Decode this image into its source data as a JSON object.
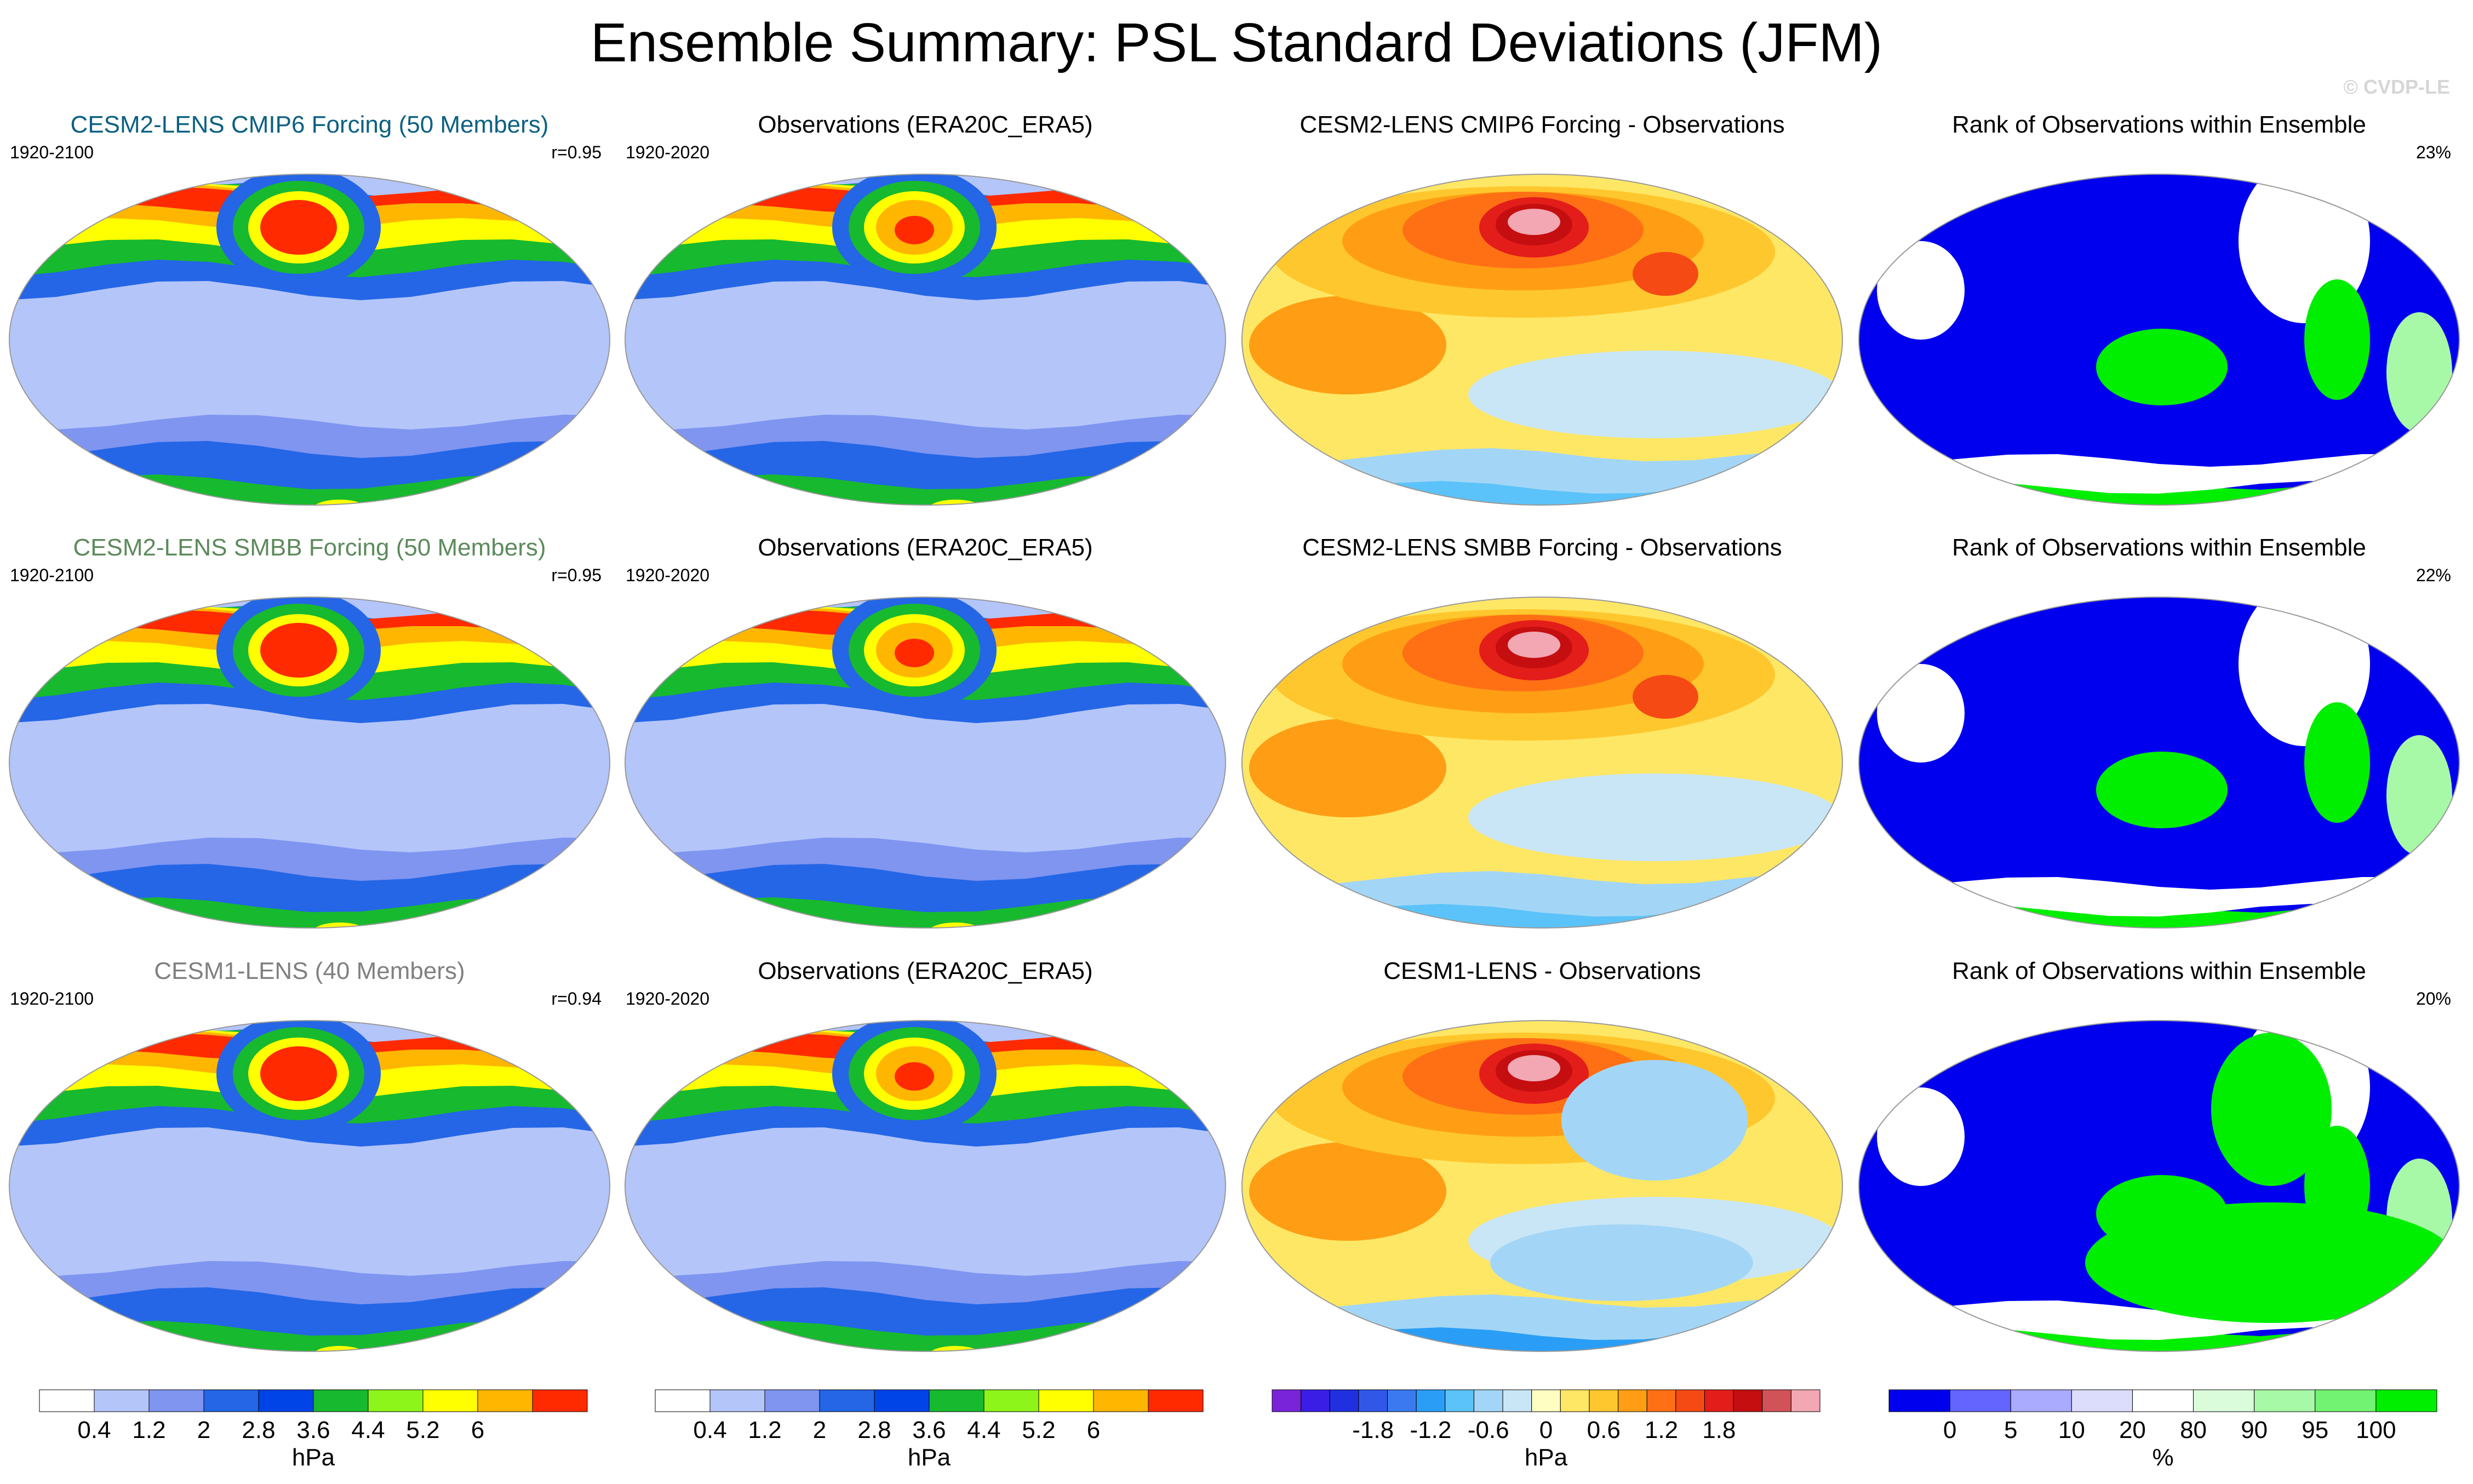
{
  "header": {
    "title": "Ensemble Summary: PSL Standard Deviations (JFM)",
    "credit": "© CVDP-LE"
  },
  "colors": {
    "seq": [
      "#ffffff",
      "#b4c5fa",
      "#7f95f0",
      "#2466e6",
      "#0044e8",
      "#17b92f",
      "#8df51a",
      "#ffff00",
      "#ffb600",
      "#ff2a00"
    ],
    "diff": [
      "#7a24d9",
      "#3a1ee6",
      "#2030e0",
      "#3157e9",
      "#3a79f0",
      "#2a9ef7",
      "#5cc3fa",
      "#a3d6f6",
      "#c9e6f7",
      "#fefec2",
      "#ffe766",
      "#ffc72e",
      "#ff9e14",
      "#ff7014",
      "#f54a14",
      "#e31d1a",
      "#c50e10",
      "#d2525a",
      "#f2a7b2"
    ],
    "rank": [
      "#0000ee",
      "#6464ff",
      "#aaaaff",
      "#dcdcfd",
      "#ffffff",
      "#dbfcdb",
      "#a7f9a7",
      "#72f372",
      "#00ee00"
    ],
    "title_blue": "#0b6083",
    "title_green": "#5c8a5c",
    "title_gray": "#808080"
  },
  "rows": [
    {
      "cols": [
        {
          "title": "CESM2-LENS CMIP6 Forcing (50 Members)",
          "left": "1920-2100",
          "right": "r=0.95",
          "kind": "seq",
          "tint": "title_blue"
        },
        {
          "title": "Observations (ERA20C_ERA5)",
          "left": "1920-2020",
          "right": "",
          "kind": "seq-obs",
          "tint": ""
        },
        {
          "title": "CESM2-LENS CMIP6 Forcing - Observations",
          "left": "",
          "right": "",
          "kind": "diff",
          "tint": ""
        },
        {
          "title": "Rank of Observations within Ensemble",
          "left": "",
          "right": "23%",
          "kind": "rank",
          "tint": ""
        }
      ]
    },
    {
      "cols": [
        {
          "title": "CESM2-LENS SMBB Forcing (50 Members)",
          "left": "1920-2100",
          "right": "r=0.95",
          "kind": "seq",
          "tint": "title_green"
        },
        {
          "title": "Observations (ERA20C_ERA5)",
          "left": "1920-2020",
          "right": "",
          "kind": "seq-obs",
          "tint": ""
        },
        {
          "title": "CESM2-LENS SMBB Forcing - Observations",
          "left": "",
          "right": "",
          "kind": "diff",
          "tint": ""
        },
        {
          "title": "Rank of Observations within Ensemble",
          "left": "",
          "right": "22%",
          "kind": "rank",
          "tint": ""
        }
      ]
    },
    {
      "cols": [
        {
          "title": "CESM1-LENS (40 Members)",
          "left": "1920-2100",
          "right": "r=0.94",
          "kind": "seq",
          "tint": "title_gray"
        },
        {
          "title": "Observations (ERA20C_ERA5)",
          "left": "1920-2020",
          "right": "",
          "kind": "seq-obs",
          "tint": ""
        },
        {
          "title": "CESM1-LENS - Observations",
          "left": "",
          "right": "",
          "kind": "diff",
          "tint": ""
        },
        {
          "title": "Rank of Observations within Ensemble",
          "left": "",
          "right": "20%",
          "kind": "rank",
          "tint": ""
        }
      ]
    }
  ],
  "colorbars": [
    {
      "palette": "seq",
      "labels": [
        "0.4",
        "1.2",
        "2",
        "2.8",
        "3.6",
        "4.4",
        "5.2",
        "6"
      ],
      "unit": "hPa"
    },
    {
      "palette": "seq",
      "labels": [
        "0.4",
        "1.2",
        "2",
        "2.8",
        "3.6",
        "4.4",
        "5.2",
        "6"
      ],
      "unit": "hPa"
    },
    {
      "palette": "diff",
      "labels": [
        "-1.8",
        "-1.2",
        "-0.6",
        "0",
        "0.6",
        "1.2",
        "1.8"
      ],
      "unit": "hPa"
    },
    {
      "palette": "rank",
      "labels": [
        "0",
        "5",
        "10",
        "20",
        "80",
        "90",
        "95",
        "100"
      ],
      "unit": "%"
    }
  ]
}
